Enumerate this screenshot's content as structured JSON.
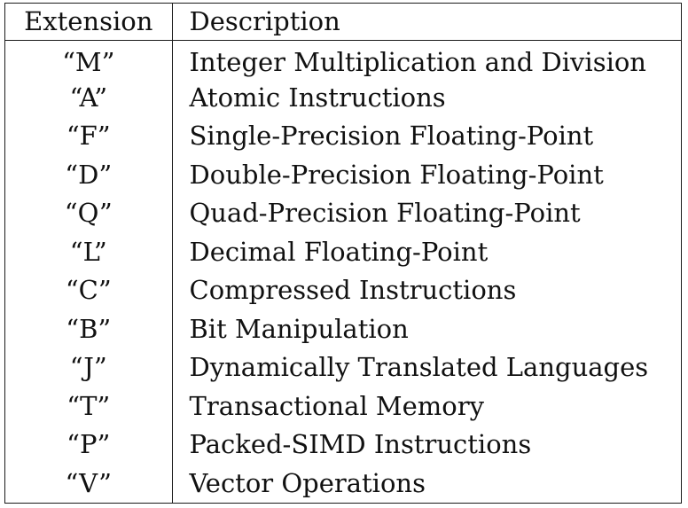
{
  "table": {
    "headers": {
      "extension": "Extension",
      "description": "Description"
    },
    "rows": [
      {
        "extension": "“M”",
        "description": "Integer Multiplication and Division"
      },
      {
        "extension": "“A”",
        "description": "Atomic Instructions"
      },
      {
        "extension": "“F”",
        "description": "Single-Precision Floating-Point"
      },
      {
        "extension": "“D”",
        "description": "Double-Precision Floating-Point"
      },
      {
        "extension": "“Q”",
        "description": "Quad-Precision Floating-Point"
      },
      {
        "extension": "“L”",
        "description": "Decimal Floating-Point"
      },
      {
        "extension": "“C”",
        "description": "Compressed Instructions"
      },
      {
        "extension": "“B”",
        "description": "Bit Manipulation"
      },
      {
        "extension": "“J”",
        "description": "Dynamically Translated Languages"
      },
      {
        "extension": "“T”",
        "description": "Transactional Memory"
      },
      {
        "extension": "“P”",
        "description": "Packed-SIMD Instructions"
      },
      {
        "extension": "“V”",
        "description": "Vector Operations"
      }
    ]
  }
}
